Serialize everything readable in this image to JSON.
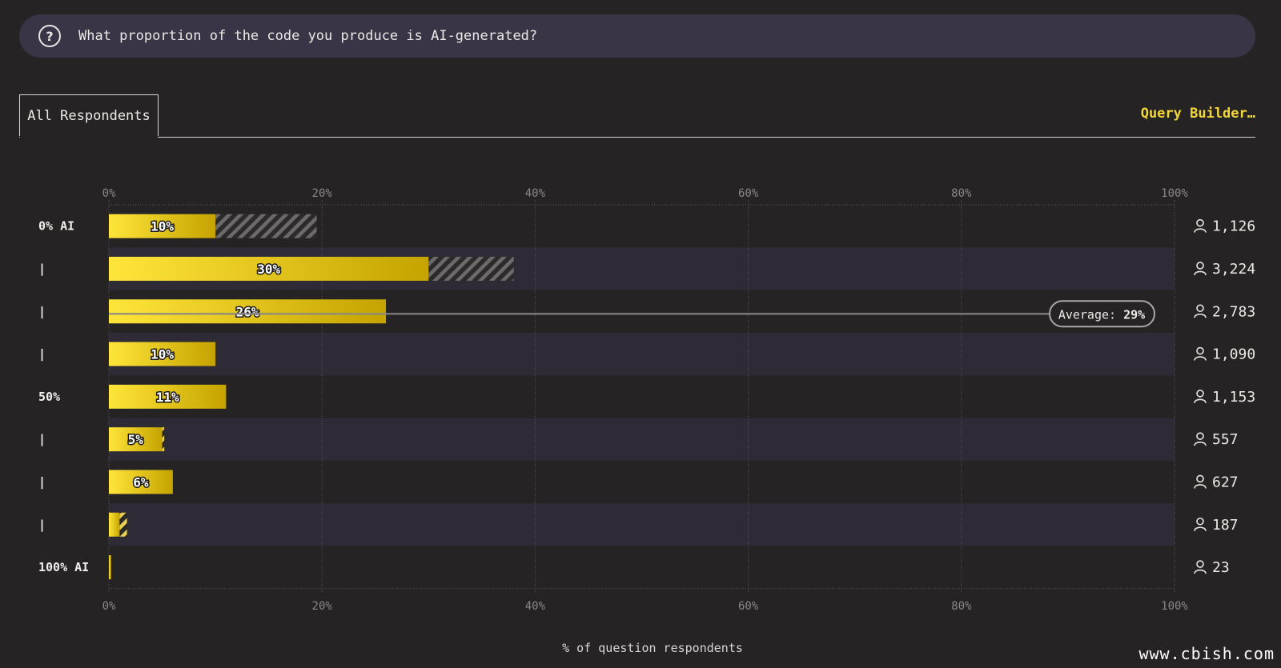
{
  "question": {
    "icon": "question-circle-icon",
    "text": "What proportion of the code you produce is AI-generated?"
  },
  "tabs": {
    "active": "All Respondents",
    "query_builder": "Query Builder…"
  },
  "colors": {
    "bar_gradient_start": "#ffe53a",
    "bar_gradient_end": "#c5a300",
    "hatch_light": "#e7cf54",
    "hatch_dark": "#6d6a6c",
    "row_band": "#2e2a36",
    "accent": "#f3d63a"
  },
  "chart_data": {
    "type": "bar",
    "orientation": "horizontal",
    "xlabel": "% of question respondents",
    "xlim": [
      0,
      100
    ],
    "xticks": [
      "0%",
      "20%",
      "40%",
      "60%",
      "80%",
      "100%"
    ],
    "categories": [
      "0% AI",
      "|",
      "|",
      "|",
      "50%",
      "|",
      "|",
      "|",
      "100% AI"
    ],
    "values": [
      10,
      30,
      26,
      10,
      11,
      5,
      6,
      1,
      0.2
    ],
    "value_labels": [
      "10%",
      "30%",
      "26%",
      "10%",
      "11%",
      "5%",
      "6%",
      "",
      ""
    ],
    "hatched_extension_end": [
      19.5,
      38,
      26,
      10,
      10.8,
      5.2,
      5.8,
      1.7,
      0.2
    ],
    "hatch_style": [
      "dark",
      "dark",
      "light",
      "light",
      "light",
      "light",
      "light",
      "light",
      "light"
    ],
    "respondents": [
      "1,126",
      "3,224",
      "2,783",
      "1,090",
      "1,153",
      "557",
      "627",
      "187",
      "23"
    ],
    "respondent_icon": "person-icon",
    "average": {
      "label": "Average: ",
      "value": "29%",
      "row": 2
    },
    "grid": true
  }
}
